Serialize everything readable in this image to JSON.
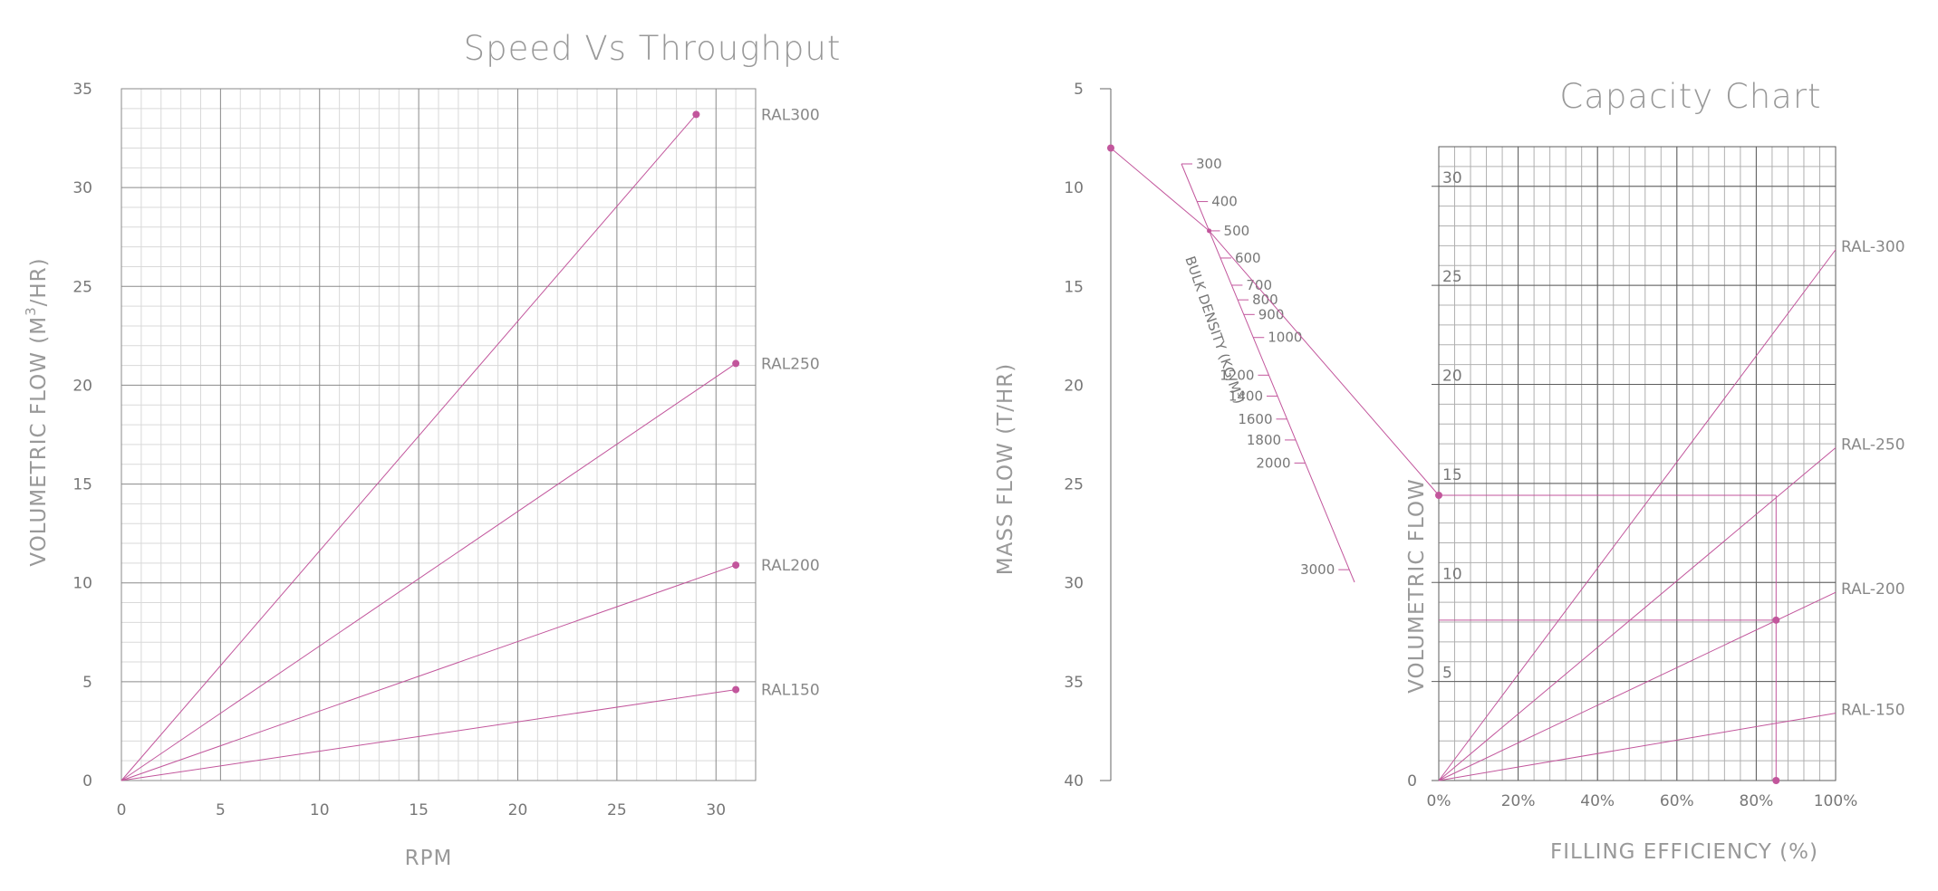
{
  "colors": {
    "series": "#c2569c",
    "major_grid": "#8a8a8a",
    "minor_grid": "#d9d9d9",
    "text": "#777777"
  },
  "chart_data": [
    {
      "type": "line",
      "title": "Speed Vs Throughput",
      "xlabel": "RPM",
      "ylabel": "VOLUMETRIC FLOW (M³/HR)",
      "ylabel_main": "VOLUMETRIC FLOW (M",
      "ylabel_sup": "3",
      "ylabel_end": "/HR)",
      "xlim": [
        0,
        32
      ],
      "ylim": [
        0,
        35
      ],
      "xticks": [
        "0",
        "5",
        "10",
        "15",
        "20",
        "25",
        "30"
      ],
      "yticks": [
        "0",
        "5",
        "10",
        "15",
        "20",
        "25",
        "30",
        "35"
      ],
      "grid": true,
      "series": [
        {
          "name": "RAL300",
          "x": [
            0,
            29
          ],
          "y": [
            0,
            33.7
          ]
        },
        {
          "name": "RAL250",
          "x": [
            0,
            31
          ],
          "y": [
            0,
            21.1
          ]
        },
        {
          "name": "RAL200",
          "x": [
            0,
            31
          ],
          "y": [
            0,
            10.9
          ]
        },
        {
          "name": "RAL150",
          "x": [
            0,
            31
          ],
          "y": [
            0,
            4.6
          ]
        }
      ]
    },
    {
      "type": "nomogram",
      "mass_axis": {
        "label": "MASS FLOW (T/HR)",
        "range": [
          5,
          40
        ],
        "ticks": [
          "5",
          "10",
          "15",
          "20",
          "25",
          "30",
          "35",
          "40"
        ],
        "marked_value": 8
      },
      "density_scale": {
        "label": "BULK DENSITY (KG/M³)",
        "label_main": "BULK DENSITY (KG/M",
        "label_sup": "3",
        "label_end": ")",
        "ticks_right": [
          "300",
          "400",
          "500",
          "600",
          "700",
          "800",
          "900",
          "1000"
        ],
        "ticks_left": [
          "1200",
          "1400",
          "1600",
          "1800",
          "2000",
          "3000"
        ],
        "marked_value": 500
      }
    },
    {
      "type": "line",
      "title": "Capacity Chart",
      "xlabel": "FILLING EFFICIENCY (%)",
      "ylabel": "VOLUMETRIC FLOW",
      "xlim": [
        0,
        100
      ],
      "ylim": [
        0,
        32
      ],
      "xticks": [
        "0%",
        "20%",
        "40%",
        "60%",
        "80%",
        "100%"
      ],
      "yticks": [
        "0",
        "5",
        "10",
        "15",
        "20",
        "25",
        "30"
      ],
      "grid": true,
      "series": [
        {
          "name": "RAL-300",
          "x": [
            0,
            100
          ],
          "y": [
            0,
            26.8
          ]
        },
        {
          "name": "RAL-250",
          "x": [
            0,
            100
          ],
          "y": [
            0,
            16.8
          ]
        },
        {
          "name": "RAL-200",
          "x": [
            0,
            100
          ],
          "y": [
            0,
            9.5
          ]
        },
        {
          "name": "RAL-150",
          "x": [
            0,
            100
          ],
          "y": [
            0,
            3.4
          ]
        }
      ],
      "annotations": [
        {
          "label": "volumetric-flow-point",
          "x": 0,
          "y": 14.4
        },
        {
          "label": "operating-point",
          "x": 85,
          "y": 8.1
        },
        {
          "label": "filling-efficiency-point",
          "x": 85,
          "y": 0
        }
      ]
    }
  ]
}
